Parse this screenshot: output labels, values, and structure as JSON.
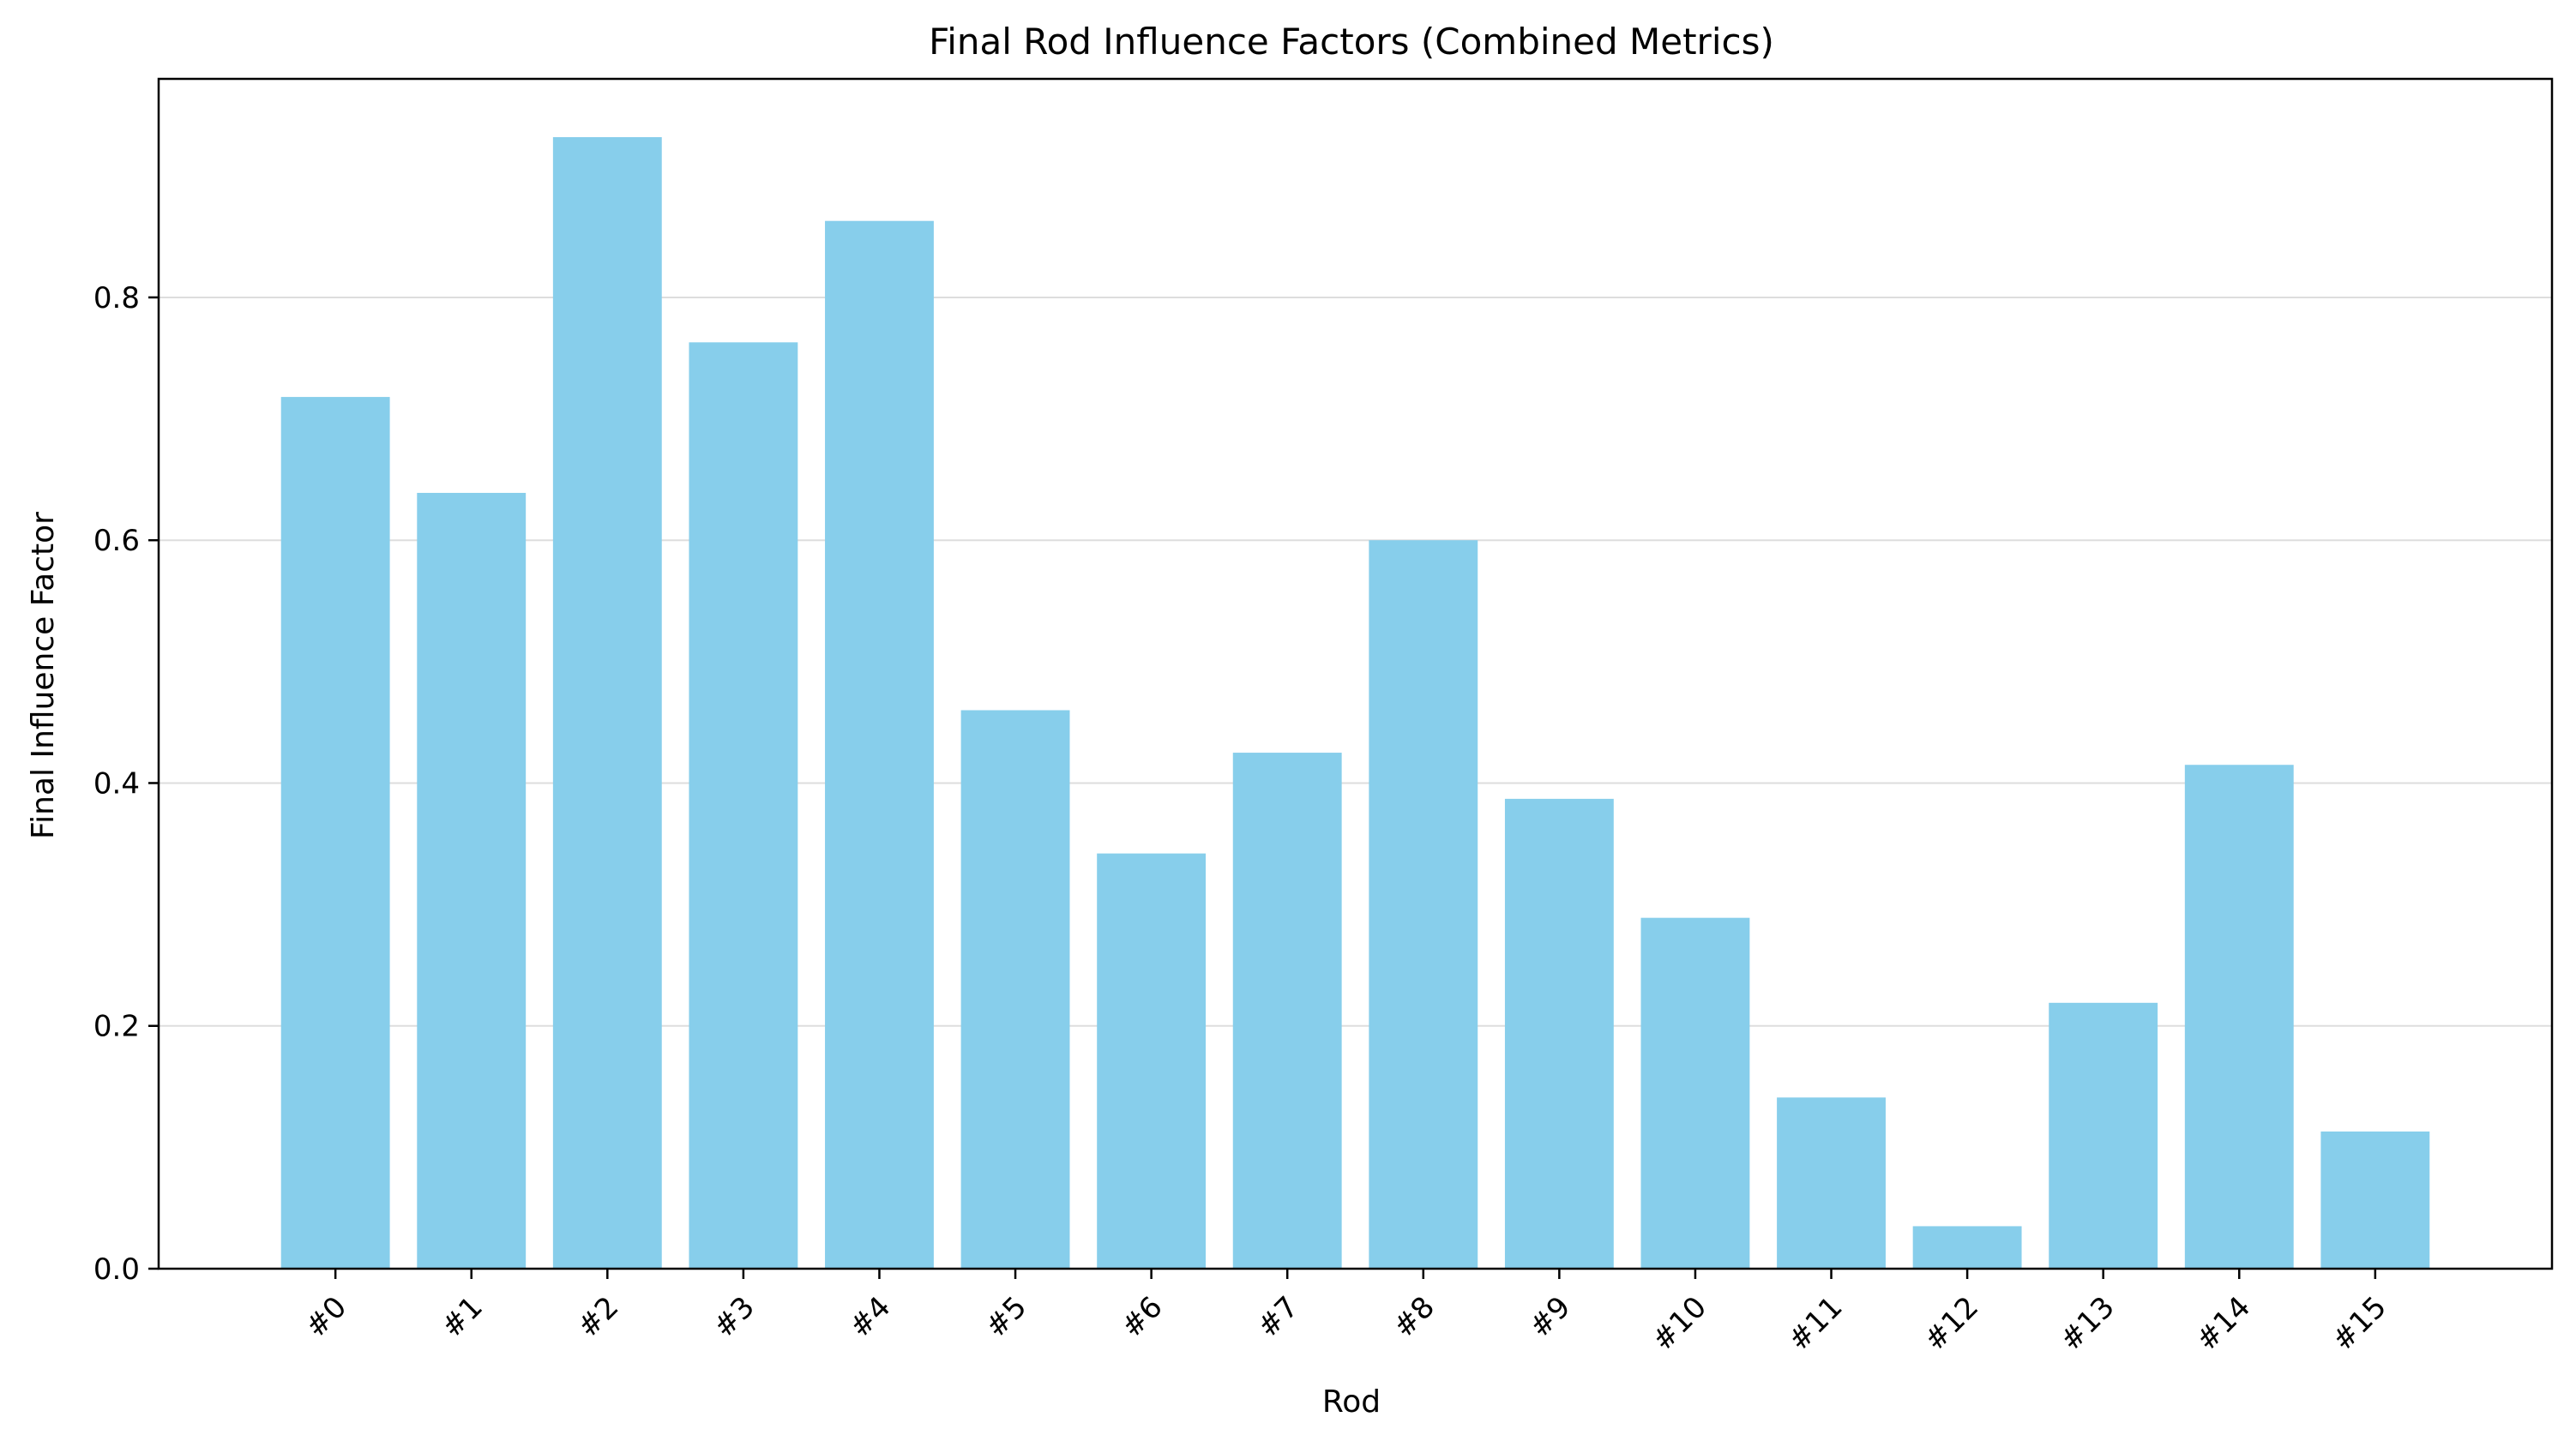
{
  "chart_data": {
    "type": "bar",
    "title": "Final Rod Influence Factors (Combined Metrics)",
    "xlabel": "Rod",
    "ylabel": "Final Influence Factor",
    "categories": [
      "#0",
      "#1",
      "#2",
      "#3",
      "#4",
      "#5",
      "#6",
      "#7",
      "#8",
      "#9",
      "#10",
      "#11",
      "#12",
      "#13",
      "#14",
      "#15"
    ],
    "values": [
      0.718,
      0.639,
      0.932,
      0.763,
      0.863,
      0.46,
      0.342,
      0.425,
      0.6,
      0.387,
      0.289,
      0.141,
      0.035,
      0.219,
      0.415,
      0.113
    ],
    "ylim": [
      0,
      0.98
    ],
    "yticks": [
      0.0,
      0.2,
      0.4,
      0.6,
      0.8
    ],
    "ytick_labels": [
      "0.0",
      "0.2",
      "0.4",
      "0.6",
      "0.8"
    ],
    "bar_color": "#87CEEB",
    "grid": "y",
    "legend": "none"
  }
}
